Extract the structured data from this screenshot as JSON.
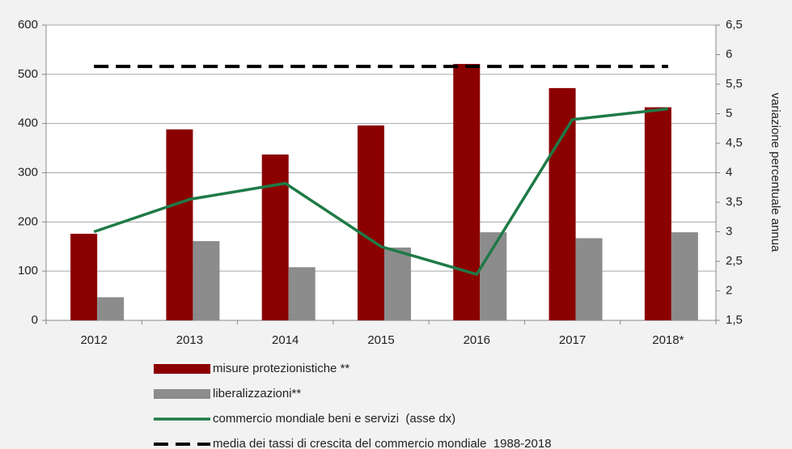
{
  "chart_data": {
    "type": "bar",
    "categories": [
      "2012",
      "2013",
      "2014",
      "2015",
      "2016",
      "2017",
      "2018*"
    ],
    "y2label": "variazione percentuale annua",
    "series": [
      {
        "name": "misure protezionistiche **",
        "type": "bar",
        "color": "#8b0000",
        "values": [
          176,
          388,
          337,
          396,
          521,
          472,
          433
        ]
      },
      {
        "name": "liberalizzazioni**",
        "type": "bar",
        "color": "#8c8c8c",
        "values": [
          47,
          161,
          108,
          148,
          179,
          167,
          179
        ]
      },
      {
        "name": "commercio mondiale beni e servizi  (asse dx)",
        "type": "line",
        "axis": "y2",
        "color": "#1e7a46",
        "values": [
          3.0,
          3.55,
          3.82,
          2.75,
          2.28,
          4.9,
          5.08
        ]
      },
      {
        "name": "media dei tassi di crescita del commercio mondiale  1988-2018",
        "type": "line",
        "dash": true,
        "axis": "y2",
        "color": "#000000",
        "values": [
          5.8,
          5.8,
          5.8,
          5.8,
          5.8,
          5.8,
          5.8
        ]
      }
    ],
    "ylim": [
      0,
      600
    ],
    "yticks": [
      0,
      100,
      200,
      300,
      400,
      500,
      600
    ],
    "y2lim": [
      1.5,
      6.5
    ],
    "y2ticks": [
      {
        "value": 1.5,
        "label": "1,5"
      },
      2,
      {
        "value": 2.5,
        "label": "2,5"
      },
      3,
      {
        "value": 3.5,
        "label": "3,5"
      },
      4,
      {
        "value": 4.5,
        "label": "4,5"
      },
      5,
      {
        "value": 5.5,
        "label": "5,5"
      },
      6,
      {
        "value": 6.5,
        "label": "6,5"
      }
    ],
    "grid": true
  }
}
